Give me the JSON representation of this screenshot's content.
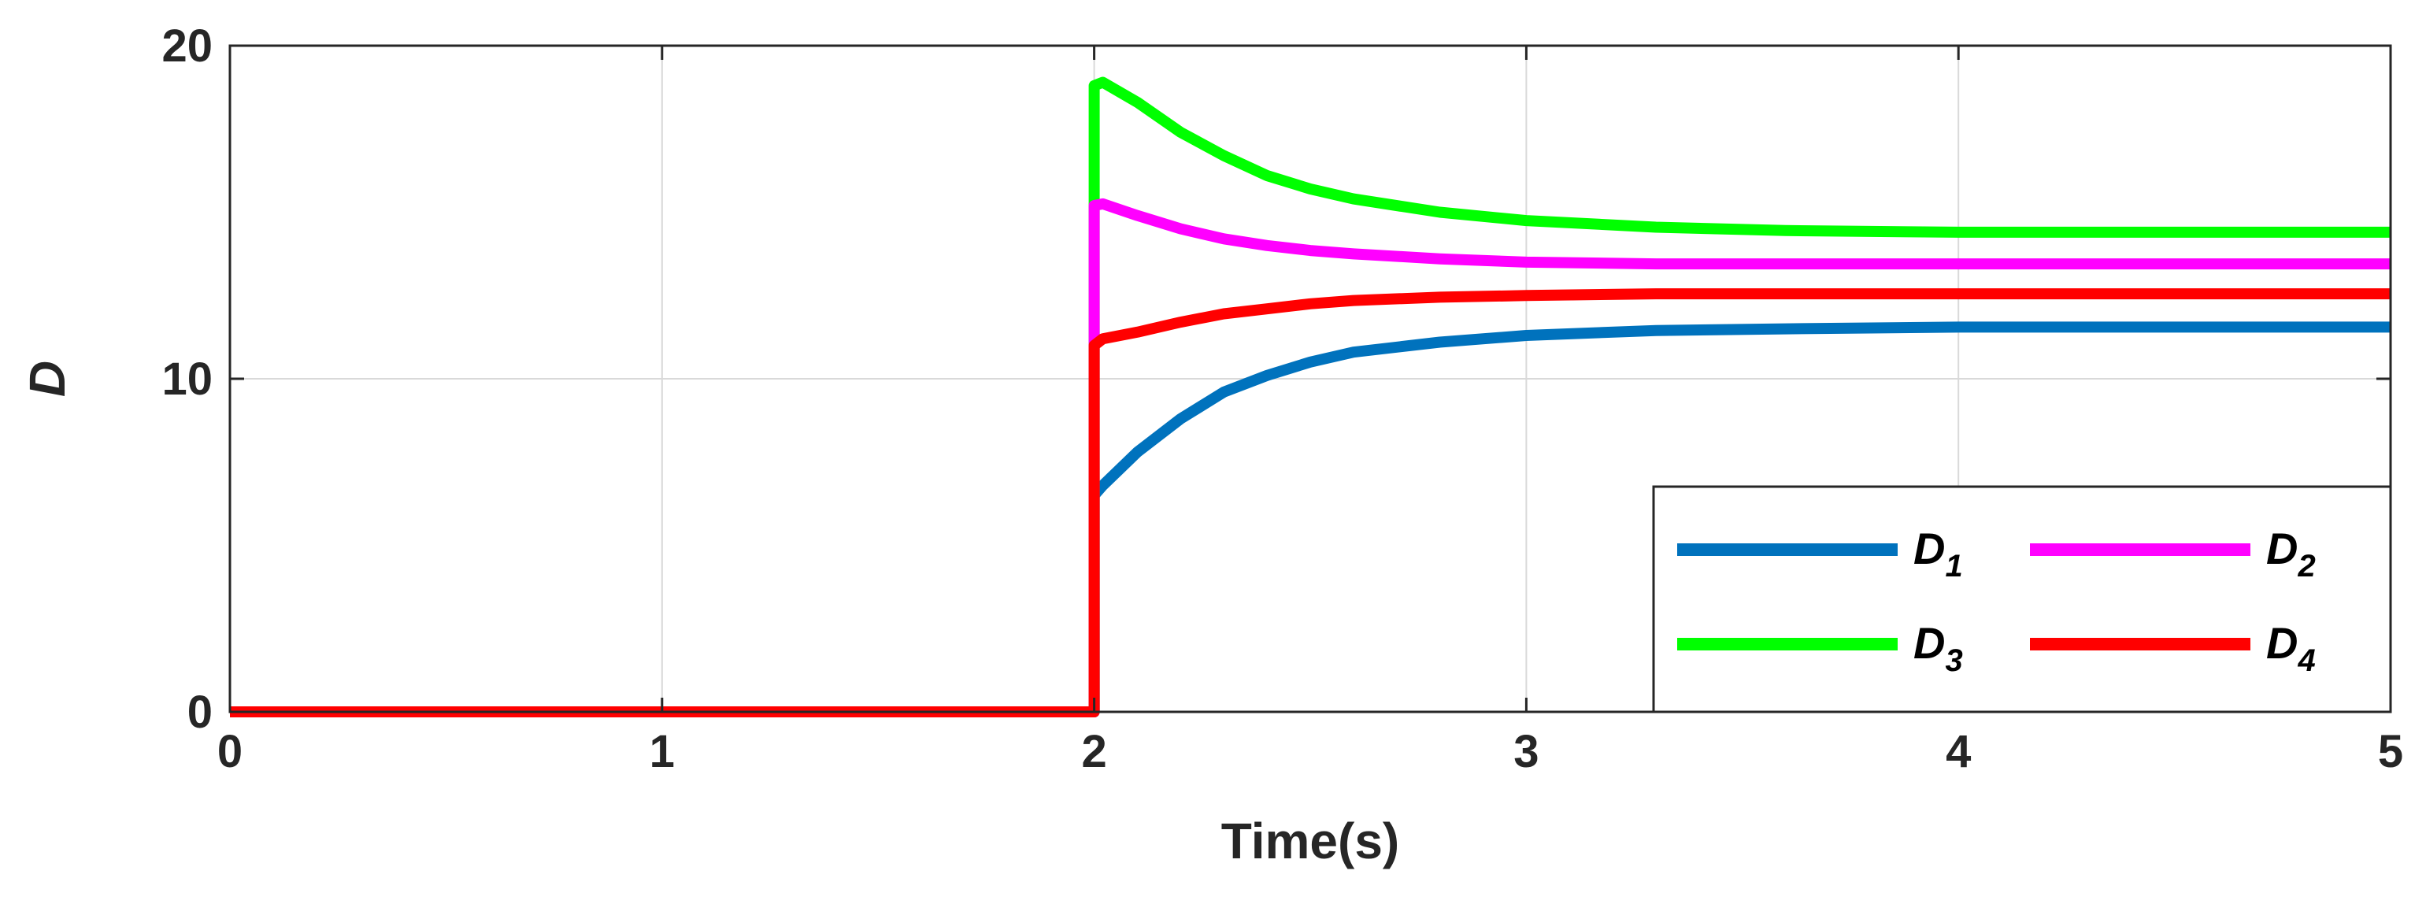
{
  "chart_data": {
    "type": "line",
    "title": "",
    "xlabel": "Time(s)",
    "ylabel": "D",
    "xlim": [
      0,
      5
    ],
    "ylim": [
      0,
      20
    ],
    "xticks": [
      0,
      1,
      2,
      3,
      4,
      5
    ],
    "yticks": [
      0,
      10,
      20
    ],
    "xtick_labels": [
      "0",
      "1",
      "2",
      "3",
      "4",
      "5"
    ],
    "ytick_labels": [
      "0",
      "10",
      "20"
    ],
    "grid": true,
    "legend": {
      "placement": "bottom-right",
      "columns": 2,
      "entries": [
        {
          "base": "D",
          "sub": "1"
        },
        {
          "base": "D",
          "sub": "2"
        },
        {
          "base": "D",
          "sub": "3"
        },
        {
          "base": "D",
          "sub": "4"
        }
      ]
    },
    "series": [
      {
        "name": "D1",
        "color": "#0072BD",
        "x": [
          0,
          2.0,
          2.0,
          2.02,
          2.1,
          2.2,
          2.3,
          2.4,
          2.5,
          2.6,
          2.8,
          3.0,
          3.3,
          3.6,
          4.0,
          4.5,
          5.0
        ],
        "y": [
          0,
          0,
          6.5,
          6.8,
          7.8,
          8.8,
          9.6,
          10.1,
          10.5,
          10.8,
          11.1,
          11.3,
          11.45,
          11.5,
          11.55,
          11.55,
          11.55
        ]
      },
      {
        "name": "D2",
        "color": "#FF00FF",
        "x": [
          0,
          2.0,
          2.0,
          2.02,
          2.1,
          2.2,
          2.3,
          2.4,
          2.5,
          2.6,
          2.8,
          3.0,
          3.3,
          3.6,
          4.0,
          4.5,
          5.0
        ],
        "y": [
          0,
          0,
          15.2,
          15.25,
          14.9,
          14.5,
          14.2,
          14.0,
          13.85,
          13.75,
          13.6,
          13.5,
          13.45,
          13.45,
          13.45,
          13.45,
          13.45
        ]
      },
      {
        "name": "D3",
        "color": "#00FF00",
        "x": [
          0,
          2.0,
          2.0,
          2.02,
          2.1,
          2.2,
          2.3,
          2.4,
          2.5,
          2.6,
          2.8,
          3.0,
          3.3,
          3.6,
          4.0,
          4.5,
          5.0
        ],
        "y": [
          0,
          0,
          18.8,
          18.9,
          18.3,
          17.4,
          16.7,
          16.1,
          15.7,
          15.4,
          15.0,
          14.75,
          14.55,
          14.45,
          14.4,
          14.4,
          14.4
        ]
      },
      {
        "name": "D4",
        "color": "#FF0000",
        "x": [
          0,
          2.0,
          2.0,
          2.02,
          2.1,
          2.2,
          2.3,
          2.4,
          2.5,
          2.6,
          2.8,
          3.0,
          3.3,
          3.6,
          4.0,
          4.5,
          5.0
        ],
        "y": [
          0,
          0,
          11.0,
          11.2,
          11.4,
          11.7,
          11.95,
          12.1,
          12.25,
          12.35,
          12.45,
          12.5,
          12.55,
          12.55,
          12.55,
          12.55,
          12.55
        ]
      }
    ]
  }
}
